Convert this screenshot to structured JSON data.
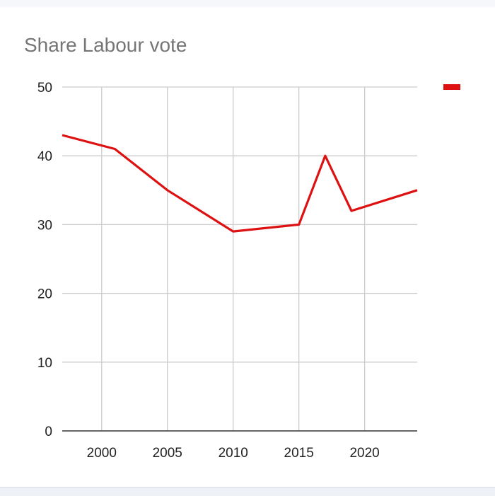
{
  "chart_data": {
    "type": "line",
    "title": "Share Labour vote",
    "xlabel": "",
    "ylabel": "",
    "xlim": [
      1997,
      2024
    ],
    "ylim": [
      0,
      50
    ],
    "x_ticks": [
      2000,
      2005,
      2010,
      2015,
      2020
    ],
    "y_ticks": [
      0,
      10,
      20,
      30,
      40,
      50
    ],
    "grid": true,
    "legend": "top-right",
    "series": [
      {
        "color": "#dd1111",
        "x": [
          1997,
          2001,
          2005,
          2010,
          2015,
          2017,
          2019,
          2024
        ],
        "y": [
          43,
          41,
          35,
          29,
          30,
          40,
          32,
          35
        ]
      }
    ]
  }
}
